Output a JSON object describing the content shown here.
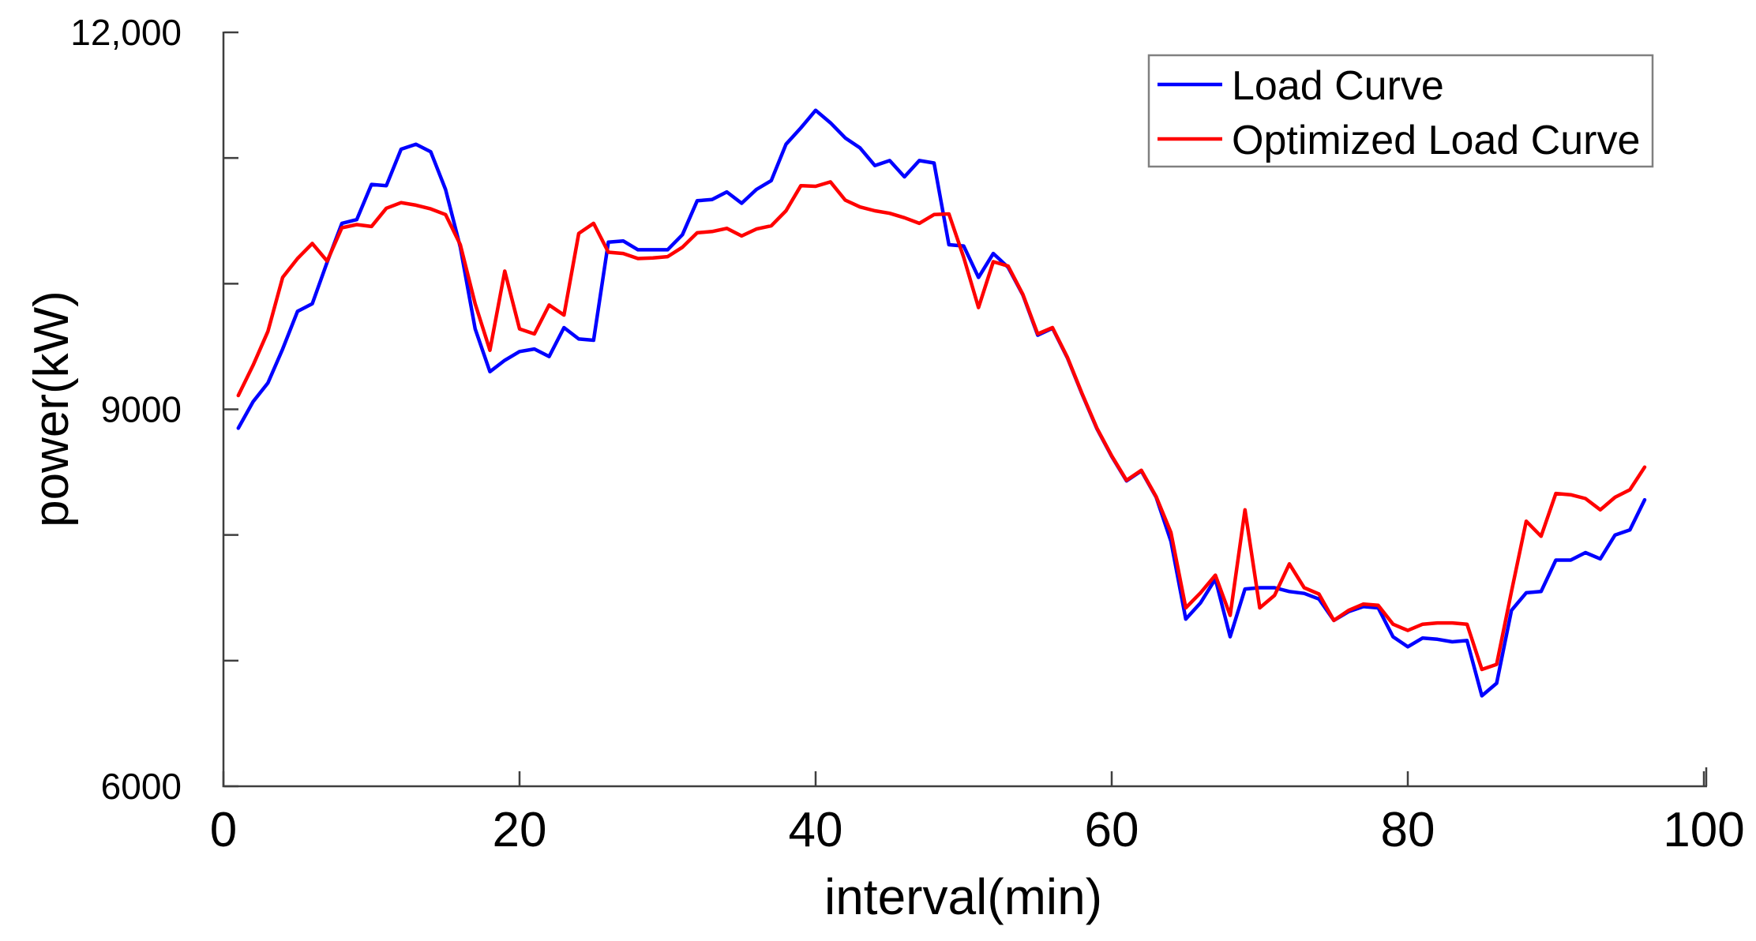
{
  "chart_data": {
    "type": "line",
    "title": "",
    "xlabel": "interval(min)",
    "ylabel": "power(kW)",
    "xlim": [
      0,
      100
    ],
    "ylim": [
      6000,
      12000
    ],
    "grid": false,
    "legend_position": "top-right",
    "x_ticks": [
      {
        "value": 0,
        "label": "0"
      },
      {
        "value": 20,
        "label": "20"
      },
      {
        "value": 40,
        "label": "40"
      },
      {
        "value": 60,
        "label": "60"
      },
      {
        "value": 80,
        "label": "80"
      },
      {
        "value": 100,
        "label": "100"
      }
    ],
    "y_ticks": [
      {
        "value": 6000,
        "label": "6000"
      },
      {
        "value": 7000,
        "label": ""
      },
      {
        "value": 8000,
        "label": ""
      },
      {
        "value": 9000,
        "label": "9000"
      },
      {
        "value": 10000,
        "label": ""
      },
      {
        "value": 11000,
        "label": ""
      },
      {
        "value": 12000,
        "label": "12,000"
      }
    ],
    "x_start": 1,
    "series": [
      {
        "name": "Load Curve",
        "color": "#0000ff",
        "values": [
          8850,
          9060,
          9210,
          9480,
          9780,
          9840,
          10170,
          10480,
          10510,
          10790,
          10780,
          11070,
          11110,
          11050,
          10750,
          10290,
          9640,
          9300,
          9390,
          9460,
          9480,
          9420,
          9650,
          9560,
          9550,
          10330,
          10340,
          10270,
          10270,
          10270,
          10390,
          10660,
          10670,
          10730,
          10640,
          10750,
          10820,
          11110,
          11240,
          11380,
          11280,
          11160,
          11080,
          10940,
          10980,
          10850,
          10980,
          10960,
          10310,
          10300,
          10050,
          10240,
          10130,
          9910,
          9590,
          9645,
          9410,
          9120,
          8845,
          8625,
          8430,
          8510,
          8300,
          7950,
          7330,
          7460,
          7650,
          7190,
          7570,
          7580,
          7580,
          7550,
          7535,
          7490,
          7320,
          7390,
          7430,
          7420,
          7190,
          7110,
          7180,
          7170,
          7150,
          7160,
          6720,
          6820,
          7400,
          7540,
          7550,
          7800,
          7800,
          7860,
          7810,
          8000,
          8040,
          8280
        ]
      },
      {
        "name": "Optimized Load Curve",
        "color": "#ff0000",
        "values": [
          9110,
          9350,
          9620,
          10050,
          10200,
          10320,
          10180,
          10445,
          10470,
          10455,
          10600,
          10645,
          10625,
          10595,
          10550,
          10310,
          9840,
          9470,
          10100,
          9640,
          9600,
          9830,
          9750,
          10400,
          10480,
          10250,
          10240,
          10200,
          10205,
          10215,
          10290,
          10405,
          10415,
          10440,
          10380,
          10435,
          10460,
          10580,
          10780,
          10775,
          10810,
          10665,
          10610,
          10580,
          10560,
          10525,
          10480,
          10550,
          10555,
          10210,
          9810,
          10175,
          10140,
          9915,
          9600,
          9650,
          9415,
          9125,
          8850,
          8630,
          8435,
          8515,
          8305,
          8020,
          7420,
          7540,
          7680,
          7360,
          8200,
          7420,
          7520,
          7770,
          7580,
          7530,
          7320,
          7400,
          7450,
          7440,
          7290,
          7240,
          7290,
          7300,
          7300,
          7290,
          6930,
          6970,
          7550,
          8110,
          7990,
          8330,
          8320,
          8290,
          8200,
          8300,
          8360,
          8540
        ]
      }
    ]
  },
  "colors": {
    "axis": "#3f3f3f",
    "legend_border": "#808080",
    "background": "#ffffff",
    "text": "#000000"
  }
}
